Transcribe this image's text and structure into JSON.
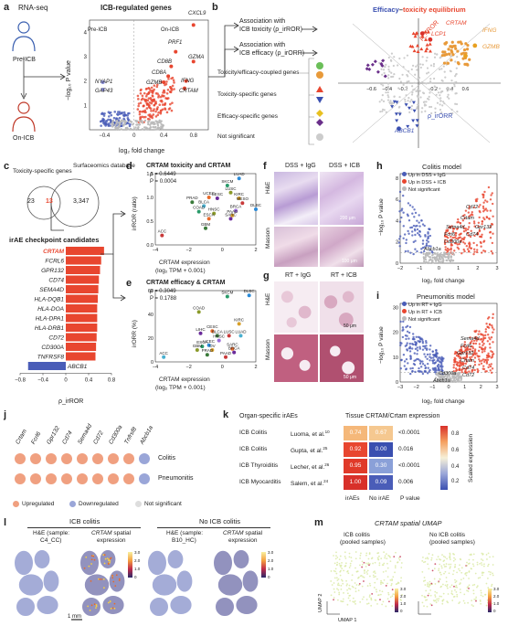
{
  "panel_a": {
    "label": "a",
    "rnaseq": "RNA-seq",
    "pre": "Pre-ICB",
    "on": "On-ICB",
    "title": "ICB-regulated genes",
    "pre_tag": "Pre-ICB",
    "on_tag": "On-ICB",
    "ylabel": "−log₁₀ P value",
    "xlabel": "log₂ fold change",
    "xticks": [
      "−0.4",
      "0",
      "0.4",
      "0.8"
    ],
    "yticks": [
      "1",
      "2",
      "3",
      "4"
    ],
    "genes": [
      "CXCL9",
      "PRF1",
      "GZMA",
      "CD8B",
      "CD8A",
      "GZMB",
      "IFNG",
      "CRTAM",
      "NYAP1",
      "GAP43"
    ],
    "colors": {
      "up": "#e8462f",
      "down": "#4a5db8",
      "ns": "#bbbbbb"
    }
  },
  "panel_b": {
    "label": "b",
    "assoc1": "Association with",
    "assoc1b": "ICB toxicity (ρ_irROR)",
    "assoc2": "Association with",
    "assoc2b": "ICB efficacy (ρ_irORR)",
    "title_a": "Efficacy",
    "title_dash": "–",
    "title_b": "toxicity equilibrium",
    "legend": [
      {
        "text": "Toxicity/efficacy-coupled genes",
        "color": "#e89a3a",
        "shape": "circle"
      },
      {
        "text": "Toxicity-specific genes",
        "color": "#e8462f",
        "shape": "triangle-up",
        "color2": "#3a4fb0"
      },
      {
        "text": "Efficacy-specific genes",
        "color": "#e8c020",
        "shape": "diamond",
        "color2": "#6a2f8a"
      },
      {
        "text": "Not significant",
        "color": "#cccccc",
        "shape": "circle"
      }
    ],
    "axis_tox": "ρ_irROR",
    "axis_eff": "ρ_irORR",
    "ticks": [
      "−0.6",
      "−0.4",
      "−0.2",
      "0.2",
      "0.4",
      "0.6"
    ],
    "genes": [
      "CRTAM",
      "LCP1",
      "IFNG",
      "GZMB",
      "ABCB1"
    ]
  },
  "panel_c": {
    "label": "c",
    "set1": "Toxicity-specific genes",
    "set2": "Surfaceomics database",
    "n1": "23",
    "n2": "13",
    "n3": "3,347",
    "title": "irAE checkpoint candidates",
    "genes": [
      "CRTAM",
      "FCRL6",
      "GPR132",
      "CD74",
      "SEMA4D",
      "HLA-DQB1",
      "HLA-DOA",
      "HLA-DPA1",
      "HLA-DRB1",
      "CD72",
      "CD300A",
      "TNFRSF8",
      "ABCB1"
    ],
    "xticks": [
      "−0.8",
      "−0.4",
      "0",
      "0.4",
      "0.8"
    ],
    "xlabel": "ρ_irROR"
  },
  "chart_data": [
    {
      "type": "bar",
      "panel": "c",
      "title": "irAE checkpoint candidates",
      "categories": [
        "CRTAM",
        "FCRL6",
        "GPR132",
        "CD74",
        "SEMA4D",
        "HLA-DQB1",
        "HLA-DOA",
        "HLA-DPA1",
        "HLA-DRB1",
        "CD72",
        "CD300A",
        "TNFRSF8",
        "ABCB1"
      ],
      "values": [
        0.67,
        0.62,
        0.6,
        0.58,
        0.57,
        0.56,
        0.55,
        0.55,
        0.55,
        0.54,
        0.53,
        0.52,
        -0.66
      ],
      "xlabel": "ρ_irROR",
      "xlim": [
        -0.8,
        0.8
      ]
    },
    {
      "type": "scatter",
      "panel": "d",
      "title": "CRTAM toxicity and CRTAM",
      "annot": [
        "ρ = 0.6449",
        "P = 0.0004"
      ],
      "xlabel": "CRTAM expression (log₂ TPM + 0.001)",
      "ylabel": "irROR (ratio)",
      "xlim": [
        -4,
        2
      ],
      "ylim": [
        0,
        1.5
      ],
      "points": [
        {
          "label": "LUAD",
          "x": 1.0,
          "y": 1.4
        },
        {
          "label": "SKCM",
          "x": 0.3,
          "y": 1.25
        },
        {
          "label": "LUSC",
          "x": 0.5,
          "y": 1.1
        },
        {
          "label": "KIRC",
          "x": 1.0,
          "y": 0.98
        },
        {
          "label": "UCEC",
          "x": -0.8,
          "y": 1.0
        },
        {
          "label": "CESC",
          "x": -0.3,
          "y": 0.98
        },
        {
          "label": "PRAD",
          "x": -1.8,
          "y": 0.9
        },
        {
          "label": "MESO",
          "x": 1.2,
          "y": 0.88
        },
        {
          "label": "BLCA",
          "x": -1.1,
          "y": 0.82
        },
        {
          "label": "BRCA",
          "x": 0.8,
          "y": 0.72
        },
        {
          "label": "DLBC",
          "x": 2.0,
          "y": 0.75
        },
        {
          "label": "COAD",
          "x": -1.4,
          "y": 0.7
        },
        {
          "label": "HNSC",
          "x": -0.5,
          "y": 0.66
        },
        {
          "label": "PAAD",
          "x": 0.6,
          "y": 0.62
        },
        {
          "label": "ESCA",
          "x": -0.8,
          "y": 0.55
        },
        {
          "label": "SARC",
          "x": 0.5,
          "y": 0.55
        },
        {
          "label": "GBM",
          "x": -1.0,
          "y": 0.35
        },
        {
          "label": "ACC",
          "x": -3.6,
          "y": 0.2
        }
      ]
    },
    {
      "type": "scatter",
      "panel": "e",
      "title": "CRTAM efficacy & CRTAM",
      "annot": [
        "ρ = 0.3049",
        "P = 0.1788"
      ],
      "xlabel": "CRTAM expression (log₂ TPM + 0.001)",
      "ylabel": "irORR (%)",
      "xlim": [
        -4,
        2
      ],
      "ylim": [
        0,
        60
      ],
      "points": [
        {
          "label": "DLBC",
          "x": 1.6,
          "y": 56
        },
        {
          "label": "SKCM",
          "x": 0.3,
          "y": 55
        },
        {
          "label": "COAD",
          "x": -1.4,
          "y": 42
        },
        {
          "label": "KIRC",
          "x": 1.0,
          "y": 32
        },
        {
          "label": "CESC",
          "x": -0.6,
          "y": 26
        },
        {
          "label": "LIHC",
          "x": -1.3,
          "y": 24
        },
        {
          "label": "BLCA",
          "x": -0.3,
          "y": 22
        },
        {
          "label": "LUSC",
          "x": 0.4,
          "y": 22
        },
        {
          "label": "LUAD",
          "x": 1.1,
          "y": 22
        },
        {
          "label": "HNSC",
          "x": -0.2,
          "y": 18
        },
        {
          "label": "UCEC",
          "x": -0.8,
          "y": 14
        },
        {
          "label": "ESCA",
          "x": -1.2,
          "y": 13
        },
        {
          "label": "GBM",
          "x": -1.5,
          "y": 10
        },
        {
          "label": "OV",
          "x": -0.6,
          "y": 10
        },
        {
          "label": "SARC",
          "x": 0.6,
          "y": 11
        },
        {
          "label": "BRCA",
          "x": 0.7,
          "y": 8
        },
        {
          "label": "PRAD",
          "x": -0.9,
          "y": 6
        },
        {
          "label": "PAAD",
          "x": 0.2,
          "y": 4
        },
        {
          "label": "ACC",
          "x": -3.5,
          "y": 4
        }
      ]
    }
  ],
  "panel_d": {
    "label": "d",
    "title": "CRTAM toxicity and CRTAM",
    "xlabel1": "CRTAM expression",
    "xlabel2": "(log₂ TPM + 0.001)",
    "ylabel": "irROR (ratio)",
    "xticks": [
      "−4",
      "−2",
      "0",
      "2"
    ],
    "yticks": [
      "0.0",
      "0.5",
      "1.0",
      "1.5"
    ],
    "annot1": "ρ = 0.6449",
    "annot2": "P = 0.0004"
  },
  "panel_e": {
    "label": "e",
    "title": "CRTAM efficacy & CRTAM",
    "xlabel1": "CRTAM expression",
    "xlabel2": "(log₂ TPM + 0.001)",
    "ylabel": "irORR (%)",
    "xticks": [
      "−4",
      "−2",
      "0",
      "2"
    ],
    "yticks": [
      "0",
      "20",
      "40",
      "60"
    ],
    "annot1": "ρ = 0.3049",
    "annot2": "P = 0.1788"
  },
  "panel_f": {
    "label": "f",
    "col1": "DSS + IgG",
    "col2": "DSS + ICB",
    "row1": "H&E",
    "row2": "Masson",
    "scale1": "200 μm",
    "scale2": "100 μm"
  },
  "panel_g": {
    "label": "g",
    "col1": "RT + IgG",
    "col2": "RT + ICB",
    "row1": "H&E",
    "row2": "Masson",
    "scale1": "50 μm",
    "scale2": "50 μm"
  },
  "panel_h": {
    "label": "h",
    "title": "Colitis model",
    "legend": [
      "Up in DSS + IgG",
      "Up in DSS + ICB",
      "Not significant"
    ],
    "ylabel": "−log₁₀ P value",
    "xlabel": "log₂ fold change",
    "xticks": [
      "−2",
      "−1",
      "0",
      "1",
      "2",
      "3"
    ],
    "yticks": [
      "0",
      "2",
      "4",
      "6",
      "8"
    ],
    "genes": [
      "Cd72",
      "Crtam",
      "Sema4d",
      "Gpr132",
      "Fcrl6",
      "Cd74",
      "Cd300a",
      "Abcb1a"
    ]
  },
  "panel_i": {
    "label": "i",
    "title": "Pneumonitis model",
    "legend": [
      "Up in RT + IgG",
      "Up in RT + ICB",
      "Not significant"
    ],
    "ylabel": "−log₁₀ P value",
    "xlabel": "log₂ fold change",
    "xticks": [
      "−3",
      "−2",
      "−1",
      "0",
      "1",
      "2",
      "3"
    ],
    "yticks": [
      "0",
      "10",
      "20",
      "30"
    ],
    "genes": [
      "Sema4d",
      "Fcrl6",
      "Gpr132",
      "Crtam",
      "Cd74",
      "Cd300a",
      "Cd72",
      "Abcb1a"
    ]
  },
  "panel_j": {
    "label": "j",
    "genes": [
      "Crtam",
      "Fcrl6",
      "Gpr132",
      "Cd74",
      "Sema4d",
      "Cd72",
      "Cd300a",
      "Tnfrsf8",
      "Abcb1a"
    ],
    "rows": [
      {
        "name": "Colitis",
        "states": [
          "up",
          "up",
          "up",
          "up",
          "up",
          "up",
          "up",
          "up",
          "down"
        ]
      },
      {
        "name": "Pneumonitis",
        "states": [
          "up",
          "up",
          "up",
          "up",
          "up",
          "up",
          "up",
          "up",
          "down"
        ]
      }
    ],
    "legend": [
      "Upregulated",
      "Downregulated",
      "Not significant"
    ],
    "colors": {
      "up": "#f0a080",
      "down": "#9aa6d8",
      "ns": "#dddddd"
    }
  },
  "panel_k": {
    "label": "k",
    "head1": "Organ-specific irAEs",
    "head2": "Tissue CRTAM/Crtam expression",
    "rows": [
      {
        "irae": "ICB Colitis",
        "ref": "Luoma, et al.",
        "sup": "10",
        "a": "0.74",
        "b": "0.67",
        "p": "<0.0001",
        "ca": "#f5b87a",
        "cb": "#f5c890"
      },
      {
        "irae": "ICB Colitis",
        "ref": "Gupta, et al.",
        "sup": "25",
        "a": "0.92",
        "b": "0.00",
        "p": "0.016",
        "ca": "#e8462f",
        "cb": "#3a4fb0"
      },
      {
        "irae": "ICB Thyroiditis",
        "ref": "Lecher, et al.",
        "sup": "26",
        "a": "0.95",
        "b": "0.30",
        "p": "<0.0001",
        "ca": "#e03a2a",
        "cb": "#8aa0d8"
      },
      {
        "irae": "ICB Myocarditis",
        "ref": "Salem, et al.",
        "sup": "24",
        "a": "1.00",
        "b": "0.09",
        "p": "0.006",
        "ca": "#d8302a",
        "cb": "#4a5db8"
      }
    ],
    "cols": [
      "irAEs",
      "No irAE",
      "P value"
    ],
    "cbar_label": "Scaled expression",
    "cbar_ticks": [
      "0.2",
      "0.4",
      "0.6",
      "0.8"
    ]
  },
  "panel_l": {
    "label": "l",
    "group1": "ICB colitis",
    "group2": "No ICB colitis",
    "t1a": "H&E (sample:",
    "t1b": "C4_CC)",
    "t2a": "CRTAM",
    "t2b": "spatial",
    "t2c": "expression",
    "t3a": "H&E (sample:",
    "t3b": "B10_HC)",
    "t4a": "CRTAM",
    "t4b": "spatial",
    "t4c": "expression",
    "scale": "1 mm",
    "cbar1": [
      "3.0",
      "2.0",
      "1.0",
      "0"
    ],
    "cbar2": [
      "3.0",
      "2.0",
      "1.0",
      "0"
    ]
  },
  "panel_m": {
    "label": "m",
    "title": "CRTAM spatial UMAP",
    "sub1a": "ICB colitis",
    "sub1b": "(pooled samples)",
    "sub2a": "No ICB colitis",
    "sub2b": "(pooled samples)",
    "umap1": "UMAP 1",
    "umap2": "UMAP 2",
    "cbar": [
      "3.0",
      "2.0",
      "1.0",
      "0"
    ]
  }
}
